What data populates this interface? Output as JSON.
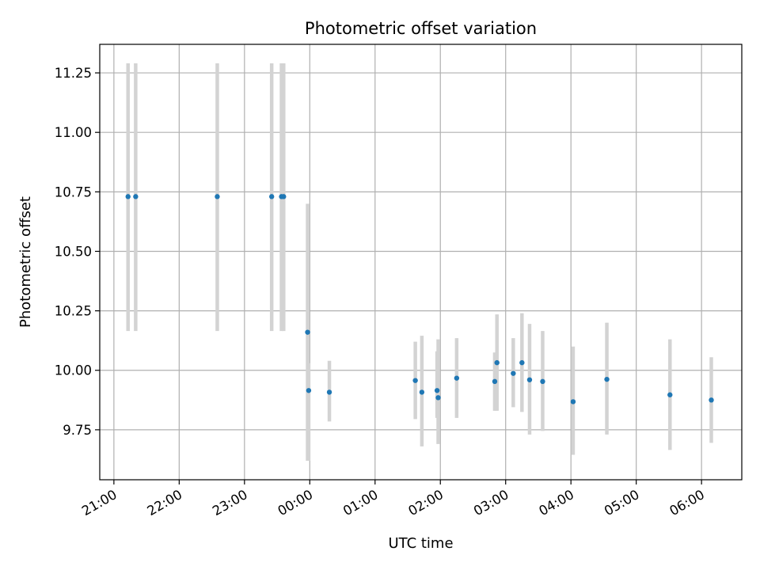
{
  "chart_data": {
    "type": "scatter",
    "title": "Photometric offset variation",
    "xlabel": "UTC time",
    "ylabel": "Photometric offset",
    "x_ticks": [
      "21:00",
      "22:00",
      "23:00",
      "00:00",
      "01:00",
      "02:00",
      "03:00",
      "04:00",
      "05:00",
      "06:00"
    ],
    "y_ticks": [
      "9.75",
      "10.00",
      "10.25",
      "10.50",
      "10.75",
      "11.00",
      "11.25"
    ],
    "xlim": [
      "20:47",
      "06:37"
    ],
    "ylim": [
      9.54,
      11.37
    ],
    "grid": true,
    "colors": {
      "point": "#1f77b4",
      "errorbar": "#d3d3d3"
    },
    "series": [
      {
        "points": [
          {
            "x": "21:13",
            "y": 10.73,
            "ylo": 10.165,
            "yhi": 11.29
          },
          {
            "x": "21:20",
            "y": 10.73,
            "ylo": 10.165,
            "yhi": 11.29
          },
          {
            "x": "22:35",
            "y": 10.73,
            "ylo": 10.165,
            "yhi": 11.29
          },
          {
            "x": "23:25",
            "y": 10.73,
            "ylo": 10.165,
            "yhi": 11.29
          },
          {
            "x": "23:34",
            "y": 10.73,
            "ylo": 10.165,
            "yhi": 11.29
          },
          {
            "x": "23:36",
            "y": 10.73,
            "ylo": 10.165,
            "yhi": 11.29
          },
          {
            "x": "23:58",
            "y": 10.16,
            "ylo": 9.62,
            "yhi": 10.7
          },
          {
            "x": "23:59",
            "y": 9.915,
            "ylo": 9.62,
            "yhi": 10.03
          },
          {
            "x": "00:18",
            "y": 9.908,
            "ylo": 9.785,
            "yhi": 10.04
          },
          {
            "x": "01:37",
            "y": 9.957,
            "ylo": 9.795,
            "yhi": 10.12
          },
          {
            "x": "01:43",
            "y": 9.908,
            "ylo": 9.68,
            "yhi": 10.145
          },
          {
            "x": "01:57",
            "y": 9.915,
            "ylo": 9.8,
            "yhi": 10.08
          },
          {
            "x": "01:58",
            "y": 9.885,
            "ylo": 9.69,
            "yhi": 10.13
          },
          {
            "x": "02:15",
            "y": 9.967,
            "ylo": 9.8,
            "yhi": 10.135
          },
          {
            "x": "02:50",
            "y": 9.953,
            "ylo": 9.83,
            "yhi": 10.075
          },
          {
            "x": "02:52",
            "y": 10.032,
            "ylo": 9.83,
            "yhi": 10.235
          },
          {
            "x": "03:07",
            "y": 9.987,
            "ylo": 9.845,
            "yhi": 10.135
          },
          {
            "x": "03:15",
            "y": 10.032,
            "ylo": 9.825,
            "yhi": 10.24
          },
          {
            "x": "03:22",
            "y": 9.96,
            "ylo": 9.73,
            "yhi": 10.195
          },
          {
            "x": "03:34",
            "y": 9.953,
            "ylo": 9.745,
            "yhi": 10.165
          },
          {
            "x": "04:02",
            "y": 9.868,
            "ylo": 9.645,
            "yhi": 10.1
          },
          {
            "x": "04:33",
            "y": 9.962,
            "ylo": 9.73,
            "yhi": 10.2
          },
          {
            "x": "05:31",
            "y": 9.897,
            "ylo": 9.665,
            "yhi": 10.13
          },
          {
            "x": "06:09",
            "y": 9.875,
            "ylo": 9.695,
            "yhi": 10.055
          }
        ]
      }
    ]
  }
}
